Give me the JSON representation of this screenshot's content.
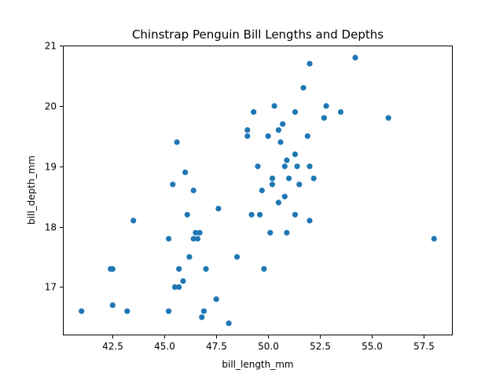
{
  "chart_data": {
    "type": "scatter",
    "title": "Chinstrap Penguin Bill Lengths and Depths",
    "xlabel": "bill_length_mm",
    "ylabel": "bill_depth_mm",
    "xlim": [
      40.1,
      58.9
    ],
    "ylim": [
      16.2,
      21.0
    ],
    "xticks": [
      42.5,
      45.0,
      47.5,
      50.0,
      52.5,
      55.0,
      57.5
    ],
    "xtick_labels": [
      "42.5",
      "45.0",
      "47.5",
      "50.0",
      "52.5",
      "55.0",
      "57.5"
    ],
    "yticks": [
      17,
      18,
      19,
      20,
      21
    ],
    "ytick_labels": [
      "17",
      "18",
      "19",
      "20",
      "21"
    ],
    "grid": false,
    "point_color": "#1f77b4",
    "points": [
      [
        41.0,
        16.6
      ],
      [
        42.4,
        17.3
      ],
      [
        42.5,
        17.3
      ],
      [
        42.5,
        16.7
      ],
      [
        43.2,
        16.6
      ],
      [
        43.5,
        18.1
      ],
      [
        45.2,
        17.8
      ],
      [
        45.2,
        16.6
      ],
      [
        45.4,
        18.7
      ],
      [
        45.5,
        17.0
      ],
      [
        45.6,
        19.4
      ],
      [
        45.7,
        17.3
      ],
      [
        45.7,
        17.0
      ],
      [
        45.9,
        17.1
      ],
      [
        46.0,
        18.9
      ],
      [
        46.1,
        18.2
      ],
      [
        46.2,
        17.5
      ],
      [
        46.4,
        17.8
      ],
      [
        46.4,
        18.6
      ],
      [
        46.5,
        17.9
      ],
      [
        46.6,
        17.8
      ],
      [
        46.7,
        17.9
      ],
      [
        46.8,
        16.5
      ],
      [
        46.9,
        16.6
      ],
      [
        47.0,
        17.3
      ],
      [
        47.5,
        16.8
      ],
      [
        47.6,
        18.3
      ],
      [
        48.1,
        16.4
      ],
      [
        48.5,
        17.5
      ],
      [
        49.0,
        19.5
      ],
      [
        49.0,
        19.6
      ],
      [
        49.2,
        18.2
      ],
      [
        49.3,
        19.9
      ],
      [
        49.5,
        19.0
      ],
      [
        49.6,
        18.2
      ],
      [
        49.7,
        18.6
      ],
      [
        49.8,
        17.3
      ],
      [
        50.0,
        19.5
      ],
      [
        50.1,
        17.9
      ],
      [
        50.2,
        18.8
      ],
      [
        50.2,
        18.7
      ],
      [
        50.3,
        20.0
      ],
      [
        50.5,
        18.4
      ],
      [
        50.5,
        19.6
      ],
      [
        50.6,
        19.4
      ],
      [
        50.7,
        19.7
      ],
      [
        50.8,
        19.0
      ],
      [
        50.8,
        18.5
      ],
      [
        50.9,
        19.1
      ],
      [
        50.9,
        17.9
      ],
      [
        51.0,
        18.8
      ],
      [
        51.3,
        19.9
      ],
      [
        51.3,
        19.2
      ],
      [
        51.3,
        18.2
      ],
      [
        51.4,
        19.0
      ],
      [
        51.5,
        18.7
      ],
      [
        51.7,
        20.3
      ],
      [
        51.9,
        19.5
      ],
      [
        52.0,
        18.1
      ],
      [
        52.0,
        19.0
      ],
      [
        52.0,
        20.7
      ],
      [
        52.2,
        18.8
      ],
      [
        52.7,
        19.8
      ],
      [
        52.8,
        20.0
      ],
      [
        53.5,
        19.9
      ],
      [
        54.2,
        20.8
      ],
      [
        55.8,
        19.8
      ],
      [
        58.0,
        17.8
      ]
    ]
  }
}
